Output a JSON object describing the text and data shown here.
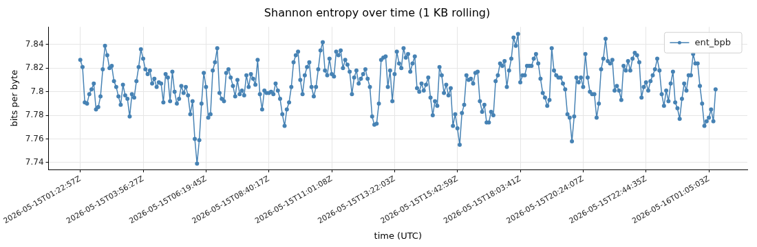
{
  "chart_data": {
    "type": "line",
    "title": "Shannon entropy over time (1 KB rolling)",
    "xlabel": "time (UTC)",
    "ylabel": "bits per byte",
    "categories": [
      "2026-05-15T01:22:57Z",
      null,
      null,
      null,
      null,
      null,
      null,
      null,
      null,
      null,
      null,
      null,
      null,
      null,
      null,
      null,
      null,
      null,
      null,
      null,
      null,
      null,
      null,
      null,
      null,
      null,
      null,
      null,
      "2026-05-15T03:56:27Z",
      null,
      null,
      null,
      null,
      null,
      null,
      null,
      null,
      null,
      null,
      null,
      null,
      null,
      null,
      null,
      null,
      null,
      null,
      null,
      null,
      null,
      null,
      null,
      null,
      null,
      null,
      null,
      "2026-05-15T06:19:45Z",
      null,
      null,
      null,
      null,
      null,
      null,
      null,
      null,
      null,
      null,
      null,
      null,
      null,
      null,
      null,
      null,
      null,
      null,
      null,
      null,
      null,
      null,
      null,
      null,
      null,
      null,
      null,
      "2026-05-15T08:40:17Z",
      null,
      null,
      null,
      null,
      null,
      null,
      null,
      null,
      null,
      null,
      null,
      null,
      null,
      null,
      null,
      null,
      null,
      null,
      null,
      null,
      null,
      null,
      null,
      null,
      null,
      null,
      null,
      "2026-05-15T11:01:08Z",
      null,
      null,
      null,
      null,
      null,
      null,
      null,
      null,
      null,
      null,
      null,
      null,
      null,
      null,
      null,
      null,
      null,
      null,
      null,
      null,
      null,
      null,
      null,
      null,
      null,
      null,
      null,
      "2026-05-15T13:22:03Z",
      null,
      null,
      null,
      null,
      null,
      null,
      null,
      null,
      null,
      null,
      null,
      null,
      null,
      null,
      null,
      null,
      null,
      null,
      null,
      null,
      null,
      null,
      null,
      null,
      null,
      null,
      null,
      "2026-05-15T15:42:59Z",
      null,
      null,
      null,
      null,
      null,
      null,
      null,
      null,
      null,
      null,
      null,
      null,
      null,
      null,
      null,
      null,
      null,
      null,
      null,
      null,
      null,
      null,
      null,
      null,
      null,
      null,
      null,
      "2026-05-15T18:03:41Z",
      null,
      null,
      null,
      null,
      null,
      null,
      null,
      null,
      null,
      null,
      null,
      null,
      null,
      null,
      null,
      null,
      null,
      null,
      null,
      null,
      null,
      null,
      null,
      null,
      null,
      null,
      null,
      "2026-05-15T20:24:07Z",
      null,
      null,
      null,
      null,
      null,
      null,
      null,
      null,
      null,
      null,
      null,
      null,
      null,
      null,
      null,
      null,
      null,
      null,
      null,
      null,
      null,
      null,
      null,
      null,
      null,
      null,
      null,
      "2026-05-15T22:44:35Z",
      null,
      null,
      null,
      null,
      null,
      null,
      null,
      null,
      null,
      null,
      null,
      null,
      null,
      null,
      null,
      null,
      null,
      null,
      null,
      null,
      null,
      null,
      null,
      null,
      null,
      null,
      null,
      "2026-05-16T01:05:03Z",
      null,
      null,
      null
    ],
    "series": [
      {
        "name": "ent_bpb",
        "color": "#4682b4",
        "values": [
          7.827,
          7.821,
          7.791,
          7.79,
          7.798,
          7.802,
          7.807,
          7.785,
          7.787,
          7.796,
          7.819,
          7.839,
          7.831,
          7.82,
          7.822,
          7.809,
          7.804,
          7.796,
          7.789,
          7.806,
          7.797,
          7.794,
          7.779,
          7.798,
          7.795,
          7.809,
          7.821,
          7.836,
          7.828,
          7.819,
          7.815,
          7.818,
          7.807,
          7.811,
          7.804,
          7.808,
          7.807,
          7.791,
          7.815,
          7.812,
          7.792,
          7.817,
          7.8,
          7.79,
          7.794,
          7.805,
          7.799,
          7.804,
          7.797,
          7.781,
          7.792,
          7.76,
          7.739,
          7.759,
          7.79,
          7.816,
          7.804,
          7.778,
          7.781,
          7.818,
          7.825,
          7.837,
          7.799,
          7.794,
          7.792,
          7.816,
          7.819,
          7.812,
          7.805,
          7.796,
          7.81,
          7.798,
          7.801,
          7.797,
          7.814,
          7.804,
          7.815,
          7.811,
          7.806,
          7.827,
          7.798,
          7.785,
          7.801,
          7.799,
          7.799,
          7.8,
          7.798,
          7.807,
          7.801,
          7.794,
          7.781,
          7.771,
          7.785,
          7.791,
          7.804,
          7.825,
          7.831,
          7.834,
          7.81,
          7.798,
          7.814,
          7.821,
          7.825,
          7.804,
          7.796,
          7.804,
          7.819,
          7.835,
          7.842,
          7.818,
          7.814,
          7.828,
          7.815,
          7.813,
          7.834,
          7.831,
          7.835,
          7.82,
          7.827,
          7.823,
          7.817,
          7.798,
          7.812,
          7.818,
          7.807,
          7.811,
          7.815,
          7.819,
          7.811,
          7.804,
          7.779,
          7.772,
          7.773,
          7.79,
          7.827,
          7.829,
          7.83,
          7.804,
          7.818,
          7.792,
          7.815,
          7.834,
          7.824,
          7.82,
          7.837,
          7.829,
          7.832,
          7.817,
          7.824,
          7.83,
          7.803,
          7.8,
          7.807,
          7.801,
          7.806,
          7.812,
          7.795,
          7.78,
          7.792,
          7.788,
          7.821,
          7.814,
          7.799,
          7.806,
          7.797,
          7.803,
          7.771,
          7.781,
          7.769,
          7.755,
          7.782,
          7.789,
          7.814,
          7.81,
          7.811,
          7.807,
          7.816,
          7.817,
          7.792,
          7.783,
          7.789,
          7.774,
          7.774,
          7.783,
          7.78,
          7.809,
          7.814,
          7.824,
          7.822,
          7.826,
          7.804,
          7.818,
          7.828,
          7.846,
          7.839,
          7.849,
          7.808,
          7.814,
          7.814,
          7.822,
          7.822,
          7.822,
          7.828,
          7.832,
          7.824,
          7.811,
          7.799,
          7.795,
          7.788,
          7.793,
          7.837,
          7.818,
          7.814,
          7.812,
          7.812,
          7.807,
          7.802,
          7.781,
          7.778,
          7.758,
          7.779,
          7.812,
          7.808,
          7.812,
          7.804,
          7.832,
          7.812,
          7.8,
          7.798,
          7.798,
          7.778,
          7.79,
          7.819,
          7.828,
          7.845,
          7.826,
          7.824,
          7.827,
          7.801,
          7.805,
          7.801,
          7.793,
          7.822,
          7.818,
          7.826,
          7.818,
          7.828,
          7.833,
          7.831,
          7.825,
          7.795,
          7.804,
          7.808,
          7.801,
          7.809,
          7.814,
          7.819,
          7.828,
          7.818,
          7.798,
          7.788,
          7.801,
          7.792,
          7.807,
          7.817,
          7.791,
          7.786,
          7.777,
          7.794,
          7.807,
          7.801,
          7.814,
          7.814,
          7.832,
          7.824,
          7.824,
          7.805,
          7.79,
          7.771,
          7.775,
          7.778,
          7.785,
          7.775,
          7.802
        ]
      }
    ],
    "ylim": [
      7.734,
      7.855
    ],
    "yticks": [
      7.74,
      7.76,
      7.78,
      7.8,
      7.82,
      7.84
    ],
    "grid": true,
    "legend": "top right",
    "marker": "circle",
    "line_style": "solid"
  }
}
